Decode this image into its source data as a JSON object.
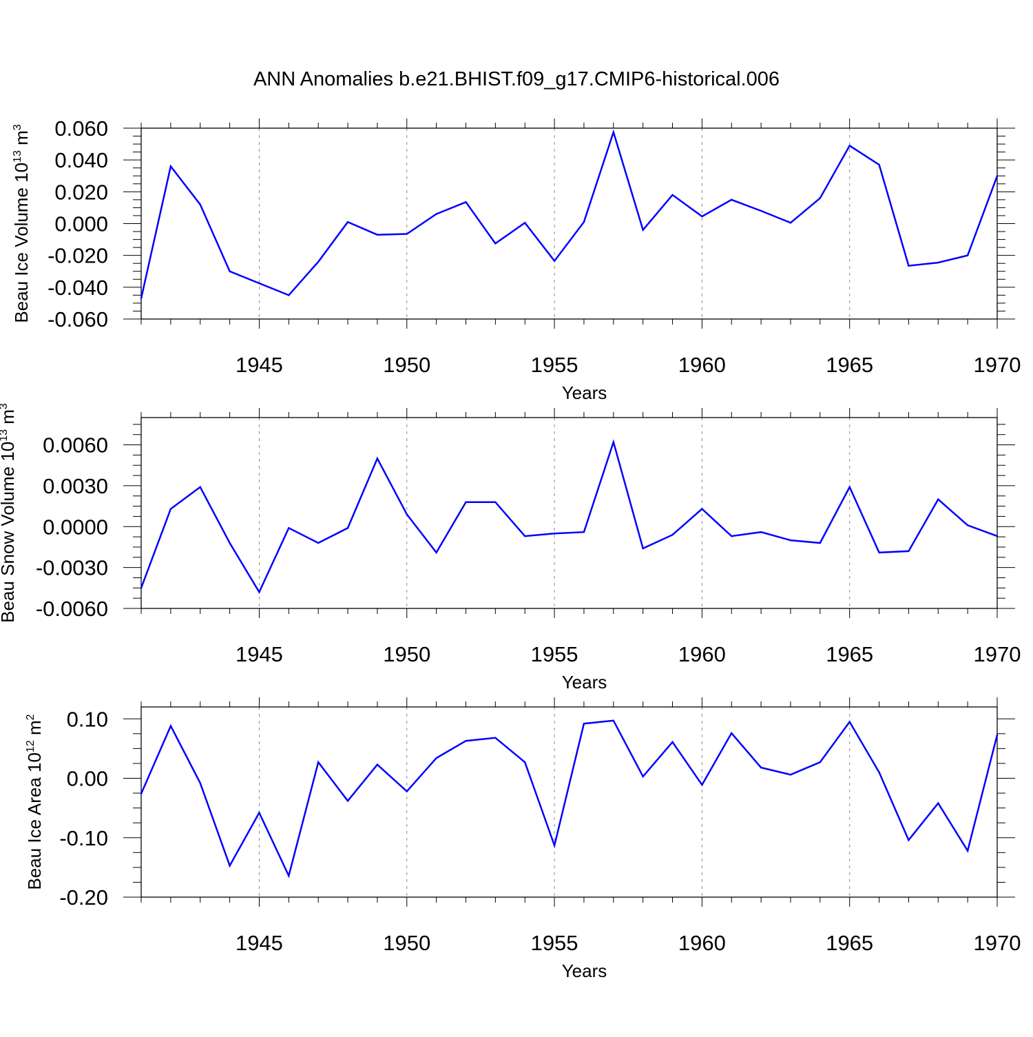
{
  "title": "ANN Anomalies b.e21.BHIST.f09_g17.CMIP6-historical.006",
  "colors": {
    "series": "#0000ff",
    "axis": "#000000",
    "grid": "#888888"
  },
  "chart_data": [
    {
      "type": "line",
      "title": "",
      "xlabel": "Years",
      "ylabel": {
        "prefix": "Beau Ice Volume 10",
        "exponent": "13",
        "unit": " m",
        "unit_exponent": "3"
      },
      "xlim": [
        1941,
        1970
      ],
      "ylim": [
        -0.06,
        0.06
      ],
      "x_ticks": [
        "1945",
        "1950",
        "1955",
        "1960",
        "1965",
        "1970"
      ],
      "y_ticks": [
        "0.060",
        "0.040",
        "0.020",
        "0.000",
        "-0.020",
        "-0.040",
        "-0.060"
      ],
      "grid": "dashed vertical at major x ticks",
      "x": [
        1941,
        1942,
        1943,
        1944,
        1945,
        1946,
        1947,
        1948,
        1949,
        1950,
        1951,
        1952,
        1953,
        1954,
        1955,
        1956,
        1957,
        1958,
        1959,
        1960,
        1961,
        1962,
        1963,
        1964,
        1965,
        1966,
        1967,
        1968,
        1969,
        1970
      ],
      "values": [
        -0.047,
        0.036,
        0.012,
        -0.03,
        -0.0375,
        -0.045,
        -0.024,
        0.001,
        -0.007,
        -0.0065,
        0.006,
        0.0135,
        -0.0125,
        0.0005,
        -0.0235,
        0.001,
        0.0575,
        -0.004,
        0.018,
        0.0045,
        0.015,
        0.008,
        0.0005,
        0.016,
        0.049,
        0.037,
        -0.0265,
        -0.0245,
        -0.02,
        0.03
      ]
    },
    {
      "type": "line",
      "title": "",
      "xlabel": "Years",
      "ylabel": {
        "prefix": "Beau Snow Volume 10",
        "exponent": "13",
        "unit": " m",
        "unit_exponent": "3"
      },
      "xlim": [
        1941,
        1970
      ],
      "ylim": [
        -0.006,
        0.008
      ],
      "x_ticks": [
        "1945",
        "1950",
        "1955",
        "1960",
        "1965",
        "1970"
      ],
      "y_ticks": [
        "0.0060",
        "0.0030",
        "0.0000",
        "-0.0030",
        "-0.0060"
      ],
      "grid": "dashed vertical at major x ticks",
      "x": [
        1941,
        1942,
        1943,
        1944,
        1945,
        1946,
        1947,
        1948,
        1949,
        1950,
        1951,
        1952,
        1953,
        1954,
        1955,
        1956,
        1957,
        1958,
        1959,
        1960,
        1961,
        1962,
        1963,
        1964,
        1965,
        1966,
        1967,
        1968,
        1969,
        1970
      ],
      "values": [
        -0.0045,
        0.0013,
        0.0029,
        -0.0012,
        -0.0048,
        -0.0001,
        -0.0012,
        -0.0001,
        0.005,
        0.0009,
        -0.0019,
        0.0018,
        0.0018,
        -0.0007,
        -0.0005,
        -0.0004,
        0.0062,
        -0.0016,
        -0.0006,
        0.0013,
        -0.0007,
        -0.0004,
        -0.001,
        -0.0012,
        0.0029,
        -0.0019,
        -0.0018,
        0.002,
        0.0001,
        -0.0007
      ]
    },
    {
      "type": "line",
      "title": "",
      "xlabel": "Years",
      "ylabel": {
        "prefix": "Beau Ice Area 10",
        "exponent": "12",
        "unit": " m",
        "unit_exponent": "2"
      },
      "xlim": [
        1941,
        1970
      ],
      "ylim": [
        -0.2,
        0.12
      ],
      "x_ticks": [
        "1945",
        "1950",
        "1955",
        "1960",
        "1965",
        "1970"
      ],
      "y_ticks": [
        "0.10",
        "0.00",
        "-0.10",
        "-0.20"
      ],
      "grid": "dashed vertical at major x ticks",
      "x": [
        1941,
        1942,
        1943,
        1944,
        1945,
        1946,
        1947,
        1948,
        1949,
        1950,
        1951,
        1952,
        1953,
        1954,
        1955,
        1956,
        1957,
        1958,
        1959,
        1960,
        1961,
        1962,
        1963,
        1964,
        1965,
        1966,
        1967,
        1968,
        1969,
        1970
      ],
      "values": [
        -0.026,
        0.088,
        -0.008,
        -0.147,
        -0.058,
        -0.164,
        0.027,
        -0.038,
        0.023,
        -0.022,
        0.034,
        0.063,
        0.068,
        0.027,
        -0.113,
        0.092,
        0.097,
        0.003,
        0.061,
        -0.011,
        0.076,
        0.018,
        0.006,
        0.027,
        0.095,
        0.01,
        -0.104,
        -0.042,
        -0.122,
        0.073
      ]
    }
  ]
}
